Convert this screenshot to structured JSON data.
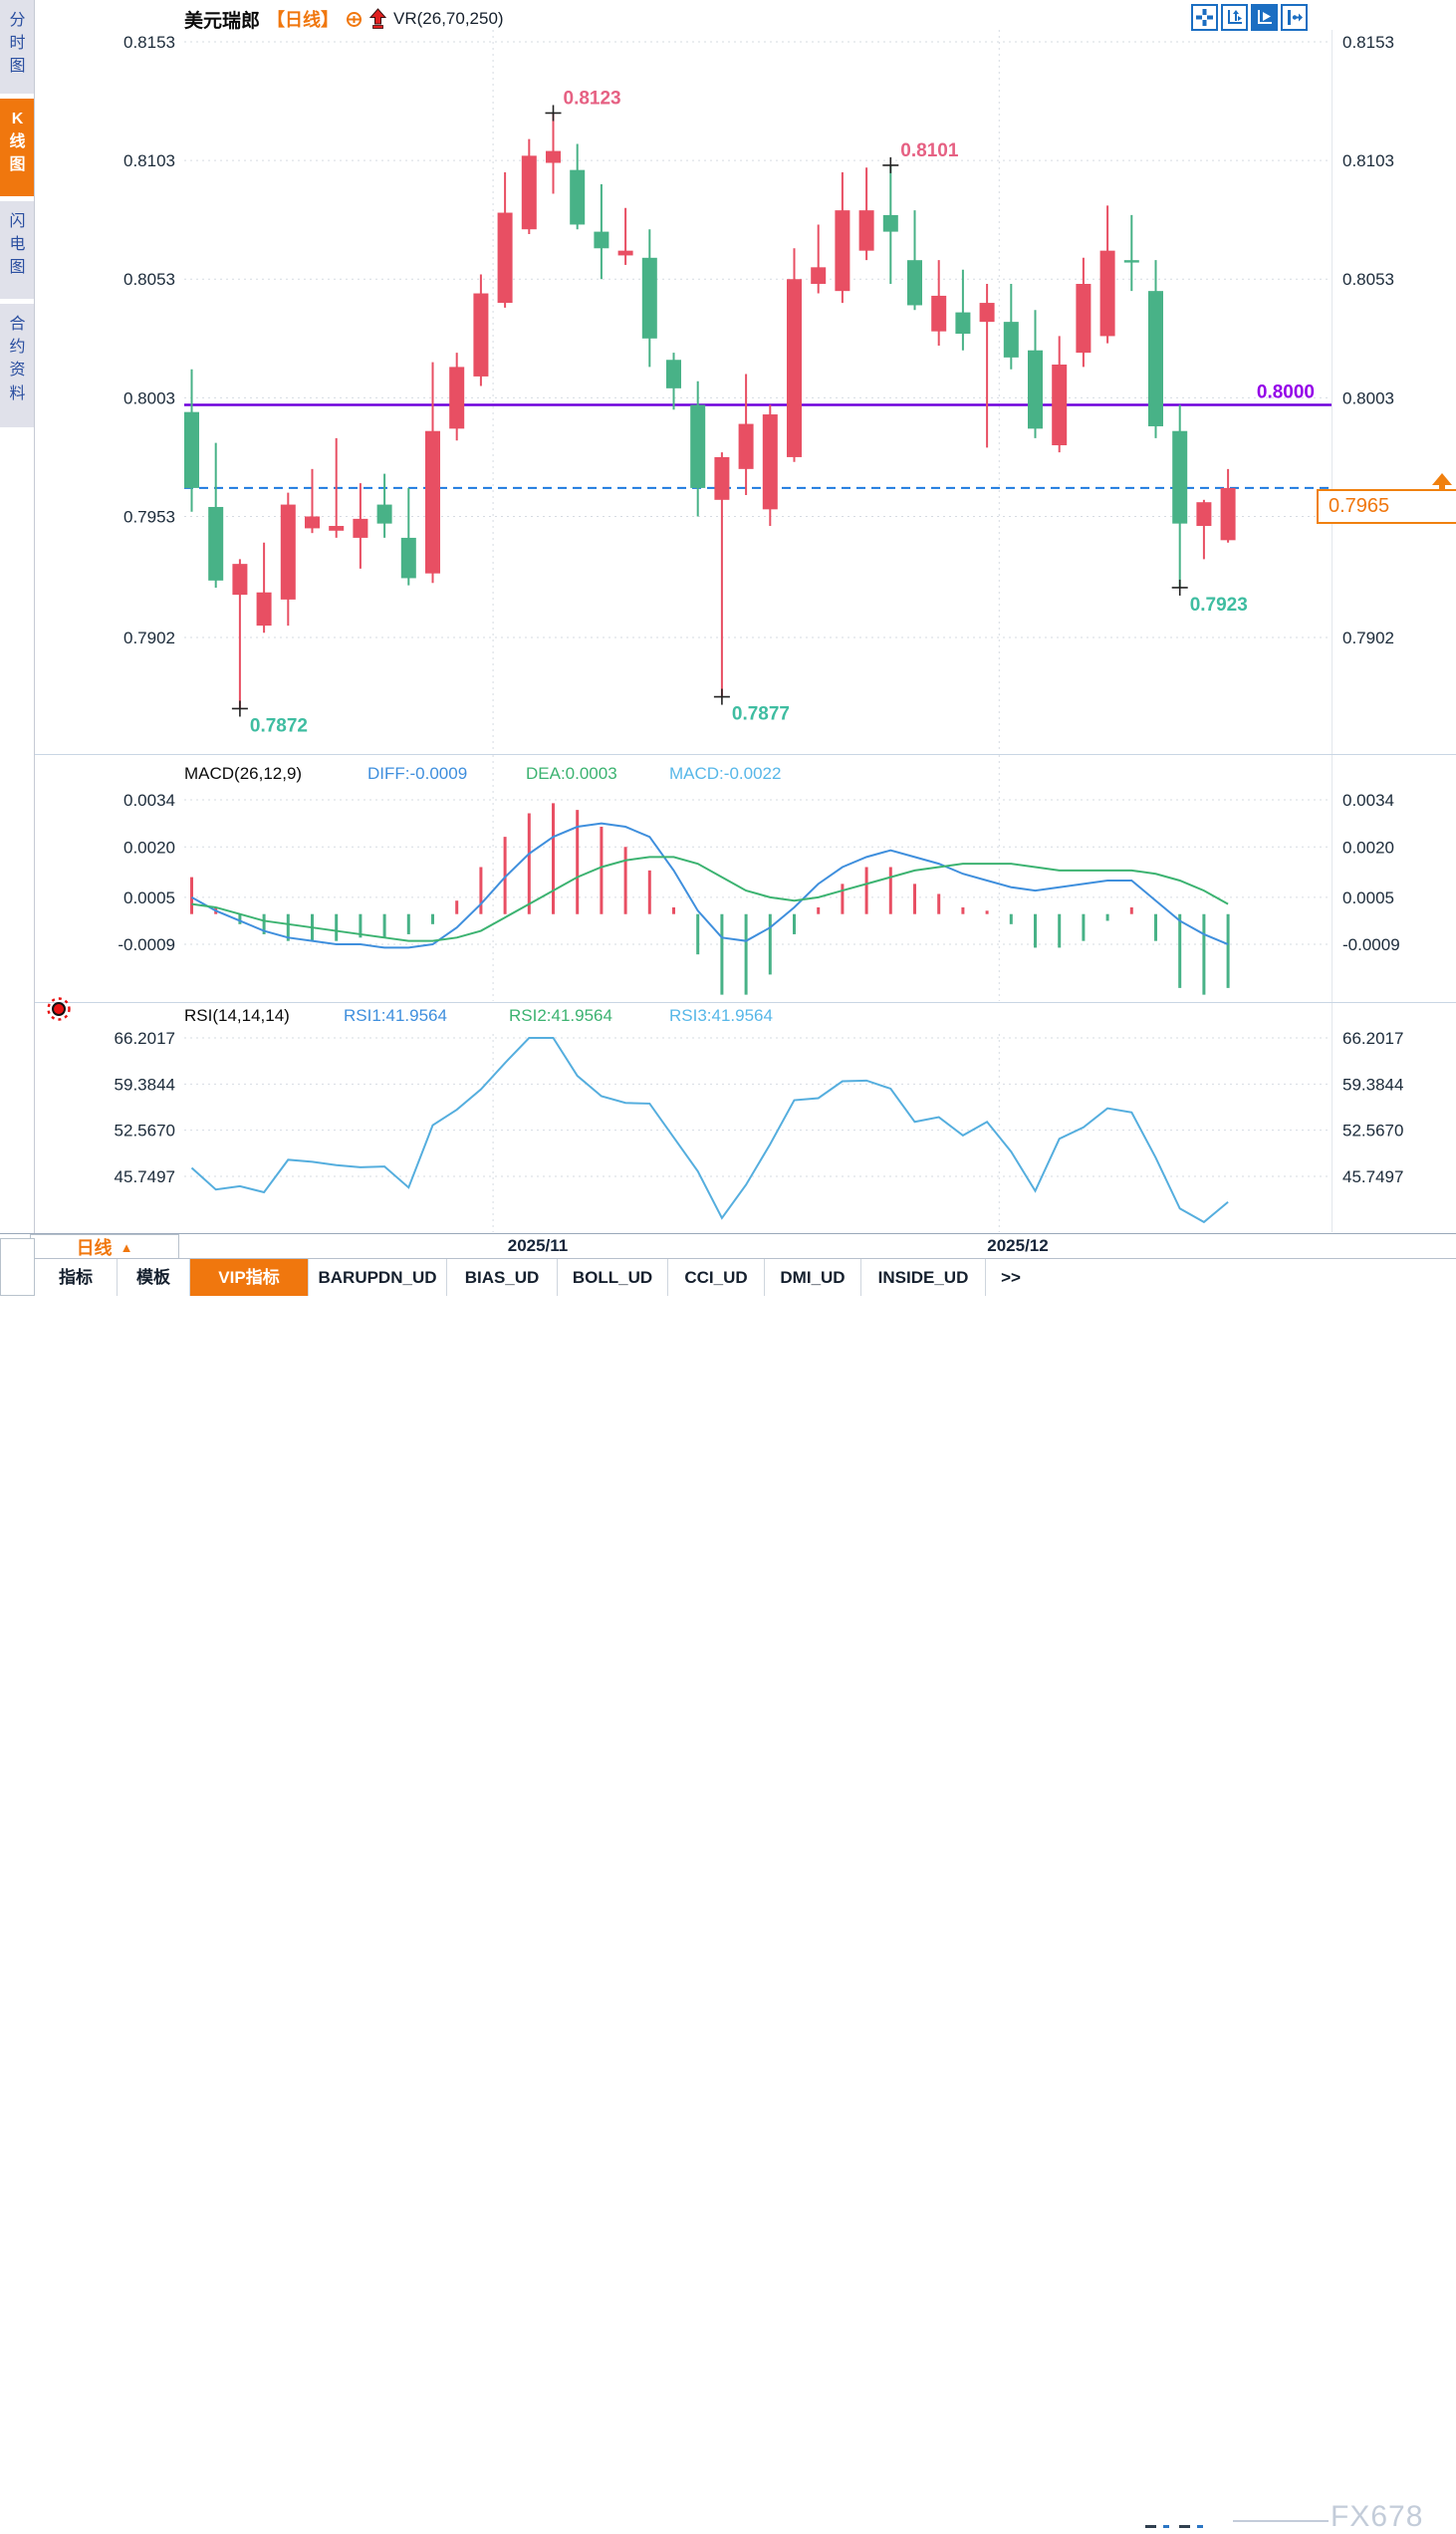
{
  "header": {
    "symbol": "美元瑞郎",
    "period_tag": "【日线】",
    "overlay_label": "VR(26,70,250)"
  },
  "toolbar_icons": [
    "pan-crosshair-icon",
    "axis-zoom-icon",
    "cursor-play-icon",
    "shift-right-icon"
  ],
  "sidebar": {
    "items": [
      {
        "label": "分时图",
        "active": false
      },
      {
        "label": "K线图",
        "active": true
      },
      {
        "label": "闪电图",
        "active": false
      },
      {
        "label": "合约资料",
        "active": false
      }
    ]
  },
  "footer": {
    "period_label": "日线",
    "period_arrow": "▲",
    "tabs": [
      {
        "label": "指标",
        "active": false
      },
      {
        "label": "模板",
        "active": false
      },
      {
        "label": "VIP指标",
        "active": true
      },
      {
        "label": "BARUPDN_UD",
        "active": false
      },
      {
        "label": "BIAS_UD",
        "active": false
      },
      {
        "label": "BOLL_UD",
        "active": false
      },
      {
        "label": "CCI_UD",
        "active": false
      },
      {
        "label": "DMI_UD",
        "active": false
      },
      {
        "label": "INSIDE_UD",
        "active": false
      },
      {
        "label": ">>",
        "active": false
      }
    ],
    "watermark": "FX678"
  },
  "chart_data": {
    "type": "candlestick",
    "symbol": "美元瑞郎",
    "period": "日线",
    "overlay": "VR(26,70,250)",
    "x_labels": [
      "2025/11",
      "2025/12"
    ],
    "main": {
      "y_ticks": [
        "0.8153",
        "0.8103",
        "0.8053",
        "0.8003",
        "0.7953",
        "0.7902"
      ],
      "right_ticks": [
        "0.8153",
        "0.8103",
        "0.8053",
        "0.8003",
        "0.7902"
      ],
      "ylim": [
        0.7902,
        0.8153
      ],
      "hline": {
        "label": "0.8000",
        "value": 0.8,
        "color": "#6e00dc"
      },
      "last_price": {
        "label": "0.7965",
        "value": 0.7965
      },
      "annotations": [
        {
          "text": "0.8123",
          "kind": "high",
          "candle_index": 15
        },
        {
          "text": "0.8101",
          "kind": "high",
          "candle_index": 29
        },
        {
          "text": "0.7872",
          "kind": "low",
          "candle_index": 2
        },
        {
          "text": "0.7877",
          "kind": "low",
          "candle_index": 22
        },
        {
          "text": "0.7923",
          "kind": "low",
          "candle_index": 41
        }
      ],
      "up_color": "#e84f63",
      "down_color": "#48b287",
      "candles": [
        [
          0.7997,
          0.8015,
          0.7955,
          0.7965
        ],
        [
          0.7957,
          0.7984,
          0.7923,
          0.7926
        ],
        [
          0.792,
          0.7935,
          0.7872,
          0.7933
        ],
        [
          0.7907,
          0.7942,
          0.7904,
          0.7921
        ],
        [
          0.7918,
          0.7963,
          0.7907,
          0.7958
        ],
        [
          0.7948,
          0.7973,
          0.7946,
          0.7953
        ],
        [
          0.7947,
          0.7986,
          0.7944,
          0.7949
        ],
        [
          0.7944,
          0.7967,
          0.7931,
          0.7952
        ],
        [
          0.7958,
          0.7971,
          0.7944,
          0.795
        ],
        [
          0.7944,
          0.7965,
          0.7924,
          0.7927
        ],
        [
          0.7929,
          0.8018,
          0.7925,
          0.7989
        ],
        [
          0.799,
          0.8022,
          0.7985,
          0.8016
        ],
        [
          0.8012,
          0.8055,
          0.8008,
          0.8047
        ],
        [
          0.8043,
          0.8098,
          0.8041,
          0.8081
        ],
        [
          0.8074,
          0.8112,
          0.8072,
          0.8105
        ],
        [
          0.8102,
          0.8123,
          0.8089,
          0.8107
        ],
        [
          0.8099,
          0.811,
          0.8074,
          0.8076
        ],
        [
          0.8073,
          0.8093,
          0.8053,
          0.8066
        ],
        [
          0.8063,
          0.8083,
          0.8059,
          0.8065
        ],
        [
          0.8062,
          0.8074,
          0.8016,
          0.8028
        ],
        [
          0.8019,
          0.8022,
          0.7998,
          0.8007
        ],
        [
          0.8,
          0.801,
          0.7953,
          0.7965
        ],
        [
          0.796,
          0.798,
          0.7877,
          0.7978
        ],
        [
          0.7973,
          0.8013,
          0.7962,
          0.7992
        ],
        [
          0.7956,
          0.8,
          0.7949,
          0.7996
        ],
        [
          0.7978,
          0.8066,
          0.7976,
          0.8053
        ],
        [
          0.8051,
          0.8076,
          0.8047,
          0.8058
        ],
        [
          0.8048,
          0.8098,
          0.8043,
          0.8082
        ],
        [
          0.8065,
          0.81,
          0.8061,
          0.8082
        ],
        [
          0.808,
          0.8101,
          0.8051,
          0.8073
        ],
        [
          0.8061,
          0.8082,
          0.804,
          0.8042
        ],
        [
          0.8031,
          0.8061,
          0.8025,
          0.8046
        ],
        [
          0.8039,
          0.8057,
          0.8023,
          0.803
        ],
        [
          0.8035,
          0.8051,
          0.7982,
          0.8043
        ],
        [
          0.8035,
          0.8051,
          0.8015,
          0.802
        ],
        [
          0.8023,
          0.804,
          0.7986,
          0.799
        ],
        [
          0.7983,
          0.8029,
          0.798,
          0.8017
        ],
        [
          0.8022,
          0.8062,
          0.8016,
          0.8051
        ],
        [
          0.8029,
          0.8084,
          0.8026,
          0.8065
        ],
        [
          0.8061,
          0.808,
          0.8048,
          0.806
        ],
        [
          0.8048,
          0.8061,
          0.7986,
          0.7991
        ],
        [
          0.7989,
          0.8,
          0.7923,
          0.795
        ],
        [
          0.7949,
          0.796,
          0.7935,
          0.7959
        ],
        [
          0.7943,
          0.7973,
          0.7942,
          0.7965
        ]
      ]
    },
    "macd": {
      "title": "MACD(26,12,9)",
      "diff_label": "DIFF:-0.0009",
      "dea_label": "DEA:0.0003",
      "macd_label": "MACD:-0.0022",
      "y_ticks": [
        "0.0034",
        "0.0020",
        "0.0005",
        "-0.0009"
      ],
      "diff": [
        0.0005,
        0.0001,
        -0.0002,
        -0.0005,
        -0.0007,
        -0.0008,
        -0.0009,
        -0.0009,
        -0.001,
        -0.001,
        -0.0009,
        -0.0004,
        0.0003,
        0.0011,
        0.0018,
        0.0023,
        0.0026,
        0.0027,
        0.0026,
        0.0023,
        0.0013,
        0.0001,
        -0.0007,
        -0.0008,
        -0.0004,
        0.0002,
        0.0009,
        0.0014,
        0.0017,
        0.0019,
        0.0017,
        0.0015,
        0.0012,
        0.001,
        0.0008,
        0.0007,
        0.0008,
        0.0009,
        0.001,
        0.001,
        0.0004,
        -0.0002,
        -0.0006,
        -0.0009
      ],
      "dea": [
        0.0003,
        0.0002,
        0.0,
        -0.0002,
        -0.0003,
        -0.0004,
        -0.0005,
        -0.0006,
        -0.0007,
        -0.0008,
        -0.0008,
        -0.0007,
        -0.0005,
        -0.0001,
        0.0003,
        0.0007,
        0.0011,
        0.0014,
        0.0016,
        0.0017,
        0.0017,
        0.0015,
        0.0011,
        0.0007,
        0.0005,
        0.0004,
        0.0005,
        0.0007,
        0.0009,
        0.0011,
        0.0013,
        0.0014,
        0.0015,
        0.0015,
        0.0015,
        0.0014,
        0.0013,
        0.0013,
        0.0013,
        0.0013,
        0.0012,
        0.001,
        0.0007,
        0.0003
      ],
      "hist": [
        0.0011,
        0.0002,
        -0.0003,
        -0.0006,
        -0.0008,
        -0.0008,
        -0.0008,
        -0.0007,
        -0.0007,
        -0.0006,
        -0.0003,
        0.0004,
        0.0014,
        0.0023,
        0.003,
        0.0033,
        0.0031,
        0.0026,
        0.002,
        0.0013,
        0.0002,
        -0.0012,
        -0.0024,
        -0.0024,
        -0.0018,
        -0.0006,
        0.0002,
        0.0009,
        0.0014,
        0.0014,
        0.0009,
        0.0006,
        0.0002,
        0.0001,
        -0.0003,
        -0.001,
        -0.001,
        -0.0008,
        -0.0002,
        0.0002,
        -0.0008,
        -0.0022,
        -0.0024,
        -0.0022
      ]
    },
    "rsi": {
      "title": "RSI(14,14,14)",
      "rsi1_label": "RSI1:41.9564",
      "rsi2_label": "RSI2:41.9564",
      "rsi3_label": "RSI3:41.9564",
      "y_ticks": [
        "66.2017",
        "59.3844",
        "52.5670",
        "45.7497"
      ],
      "values": [
        47.0,
        43.8,
        44.3,
        43.4,
        48.2,
        47.9,
        47.4,
        47.1,
        47.2,
        44.1,
        53.3,
        55.6,
        58.6,
        62.5,
        66.2,
        66.2,
        60.6,
        57.6,
        56.6,
        56.5,
        51.5,
        46.5,
        39.6,
        44.5,
        50.5,
        57.0,
        57.3,
        59.8,
        59.9,
        58.7,
        53.8,
        54.5,
        51.8,
        53.8,
        49.4,
        43.6,
        51.3,
        53.0,
        55.8,
        55.2,
        48.5,
        41.0,
        39.0,
        41.9564
      ]
    }
  }
}
